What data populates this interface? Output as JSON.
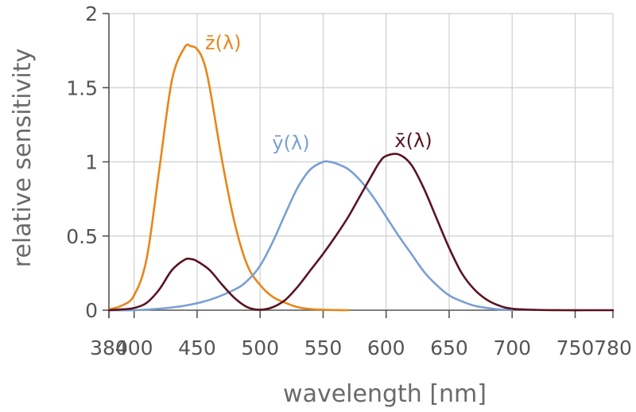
{
  "chart_data": {
    "type": "line",
    "title": "",
    "xlabel": "wavelength [nm]",
    "ylabel": "relative sensitivity",
    "xlim": [
      380,
      780
    ],
    "ylim": [
      0,
      2
    ],
    "grid": true,
    "xticks": [
      380,
      400,
      450,
      500,
      550,
      600,
      650,
      700,
      750,
      780
    ],
    "yticks": [
      0,
      0.5,
      1,
      1.5,
      2
    ],
    "ytick_labels": [
      "0",
      "0.5",
      "1",
      "1.5",
      "2"
    ],
    "series": [
      {
        "name": "z̄(λ)",
        "color": "#e8861a",
        "x": [
          380,
          390,
          400,
          410,
          420,
          430,
          440,
          445,
          450,
          455,
          460,
          470,
          480,
          490,
          500,
          510,
          520,
          530,
          540,
          550,
          560,
          570
        ],
        "y": [
          0.006,
          0.03,
          0.1,
          0.35,
          0.95,
          1.55,
          1.77,
          1.78,
          1.76,
          1.68,
          1.5,
          1.0,
          0.58,
          0.3,
          0.17,
          0.09,
          0.05,
          0.02,
          0.008,
          0.003,
          0.001,
          0.0
        ]
      },
      {
        "name": "ȳ(λ)",
        "color": "#7a9fd2",
        "x": [
          380,
          400,
          420,
          440,
          460,
          480,
          490,
          500,
          510,
          520,
          530,
          540,
          550,
          555,
          560,
          570,
          580,
          590,
          600,
          610,
          620,
          630,
          640,
          650,
          660,
          670,
          680,
          690,
          700
        ],
        "y": [
          0.0,
          0.0,
          0.01,
          0.03,
          0.07,
          0.14,
          0.2,
          0.3,
          0.46,
          0.65,
          0.83,
          0.95,
          1.0,
          1.0,
          0.99,
          0.95,
          0.87,
          0.76,
          0.63,
          0.5,
          0.38,
          0.26,
          0.17,
          0.1,
          0.06,
          0.03,
          0.015,
          0.005,
          0.0
        ]
      },
      {
        "name": "x̄(λ)",
        "color": "#5a1322",
        "x": [
          380,
          390,
          400,
          410,
          420,
          430,
          440,
          445,
          450,
          460,
          470,
          480,
          490,
          500,
          510,
          520,
          530,
          540,
          550,
          560,
          570,
          580,
          590,
          595,
          600,
          610,
          620,
          630,
          640,
          650,
          660,
          670,
          680,
          690,
          700,
          720,
          740,
          760,
          780
        ],
        "y": [
          0.0,
          0.005,
          0.015,
          0.05,
          0.14,
          0.27,
          0.34,
          0.345,
          0.33,
          0.27,
          0.17,
          0.08,
          0.02,
          0.003,
          0.02,
          0.07,
          0.16,
          0.27,
          0.38,
          0.5,
          0.63,
          0.78,
          0.93,
          1.0,
          1.04,
          1.05,
          0.98,
          0.82,
          0.62,
          0.42,
          0.25,
          0.14,
          0.07,
          0.03,
          0.01,
          0.002,
          0.0,
          0.0,
          0.0
        ]
      }
    ]
  }
}
